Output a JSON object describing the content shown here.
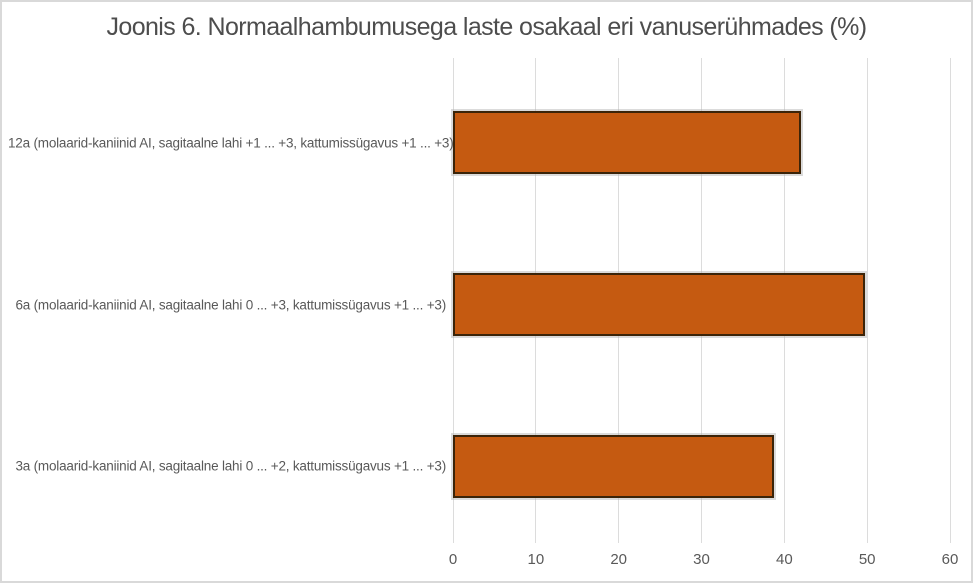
{
  "figure": {
    "title": "Joonis 6. Normaalhambumusega laste osakaal eri vanuserühmades (%)"
  },
  "colors": {
    "bar_fill": "#C55A11",
    "bar_border": "#3B2409",
    "gridline": "#DCDCDC",
    "frame_border": "#D9D9D9",
    "title_text": "#4D4D4D",
    "axis_text": "#595959"
  },
  "chart_data": {
    "type": "bar",
    "orientation": "horizontal",
    "title": "Joonis 6. Normaalhambumusega laste osakaal eri vanuserühmades (%)",
    "categories": [
      "12a (molaarid-kaniinid AI, sagitaalne lahi +1 ... +3, kattumissügavus +1 ... +3)",
      "6a (molaarid-kaniinid AI, sagitaalne lahi 0 ... +3, kattumissügavus +1 ... +3)",
      "3a (molaarid-kaniinid AI, sagitaalne lahi 0 ... +2, kattumissügavus +1 ... +3)"
    ],
    "values": [
      42,
      49.7,
      38.8
    ],
    "xlim": [
      0,
      60
    ],
    "x_ticks": [
      0,
      10,
      20,
      30,
      40,
      50,
      60
    ],
    "xlabel": "",
    "ylabel": "",
    "grid": true,
    "legend": false
  }
}
